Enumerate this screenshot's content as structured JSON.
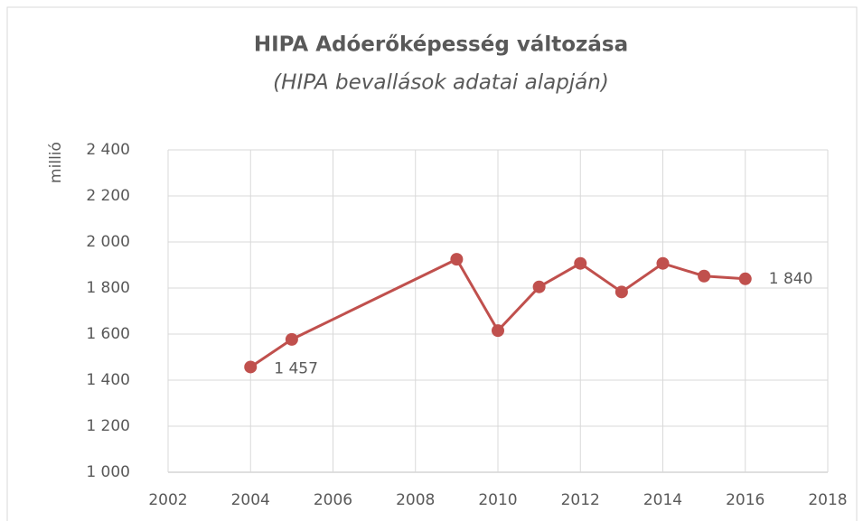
{
  "chart_data": {
    "type": "line",
    "title": "HIPA Adóerőképesség változása",
    "subtitle": "(HIPA bevallások adatai alapján)",
    "y_label": "millió",
    "x": [
      2004,
      2005,
      2009,
      2010,
      2011,
      2012,
      2013,
      2014,
      2015,
      2016
    ],
    "series": [
      {
        "name": "HIPA",
        "color": "#c0504d",
        "values": [
          1457,
          1577,
          1925,
          1615,
          1805,
          1907,
          1783,
          1907,
          1852,
          1840
        ]
      }
    ],
    "value_labels": [
      "1 457",
      null,
      null,
      null,
      null,
      null,
      null,
      null,
      null,
      "1 840"
    ],
    "xlim": [
      2002,
      2018
    ],
    "xticks": [
      2002,
      2004,
      2006,
      2008,
      2010,
      2012,
      2014,
      2016,
      2018
    ],
    "ylim": [
      1000,
      2400
    ],
    "yticks": [
      {
        "value": 1000,
        "label": "1 000"
      },
      {
        "value": 1200,
        "label": "1 200"
      },
      {
        "value": 1400,
        "label": "1 400"
      },
      {
        "value": 1600,
        "label": "1 600"
      },
      {
        "value": 1800,
        "label": "1 800"
      },
      {
        "value": 2000,
        "label": "2 000"
      },
      {
        "value": 2200,
        "label": "2 200"
      },
      {
        "value": 2400,
        "label": "2 400"
      }
    ],
    "grid": true
  }
}
